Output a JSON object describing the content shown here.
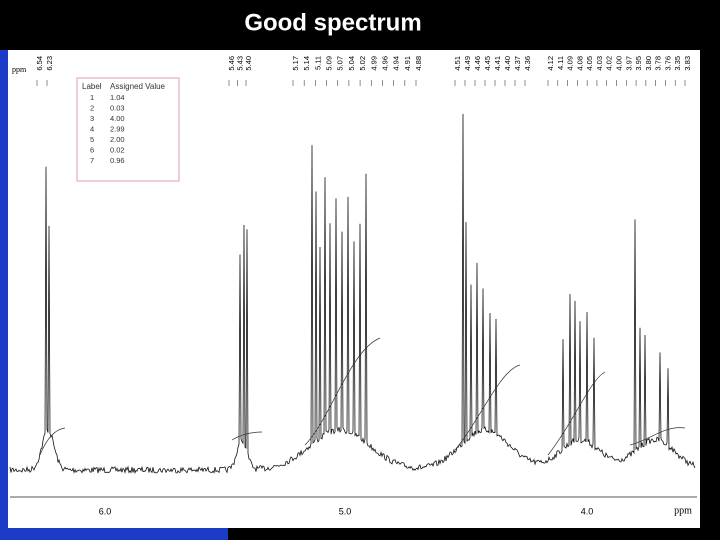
{
  "title": "Good spectrum",
  "spectrum": {
    "corner_unit": "ppm",
    "axis_unit": "ppm",
    "axis_ticks": [
      "6.0",
      "5.0",
      "4.0"
    ],
    "peak_label_groups": [
      [
        "6.54",
        "6.23"
      ],
      [
        "5.46",
        "5.43",
        "5.40"
      ],
      [
        "5.17",
        "5.14",
        "5.11",
        "5.09",
        "5.07",
        "5.04",
        "5.02",
        "4.99",
        "4.96",
        "4.94",
        "4.91",
        "4.88"
      ],
      [
        "4.51",
        "4.49",
        "4.46",
        "4.45",
        "4.41",
        "4.40",
        "4.37",
        "4.36"
      ],
      [
        "4.12",
        "4.11",
        "4.09",
        "4.08",
        "4.05",
        "4.03",
        "4.02",
        "4.00",
        "3.97",
        "3.95",
        "3.80",
        "3.78",
        "3.76",
        "3.35",
        "3.83"
      ]
    ],
    "integral_table": {
      "headers": [
        "Label",
        "Assigned Value"
      ],
      "rows": [
        [
          "1",
          "1.04"
        ],
        [
          "2",
          "0.03"
        ],
        [
          "3",
          "4.00"
        ],
        [
          "4",
          "2.99"
        ],
        [
          "5",
          "2.00"
        ],
        [
          "6",
          "0.02"
        ],
        [
          "7",
          "0.96"
        ]
      ]
    }
  }
}
